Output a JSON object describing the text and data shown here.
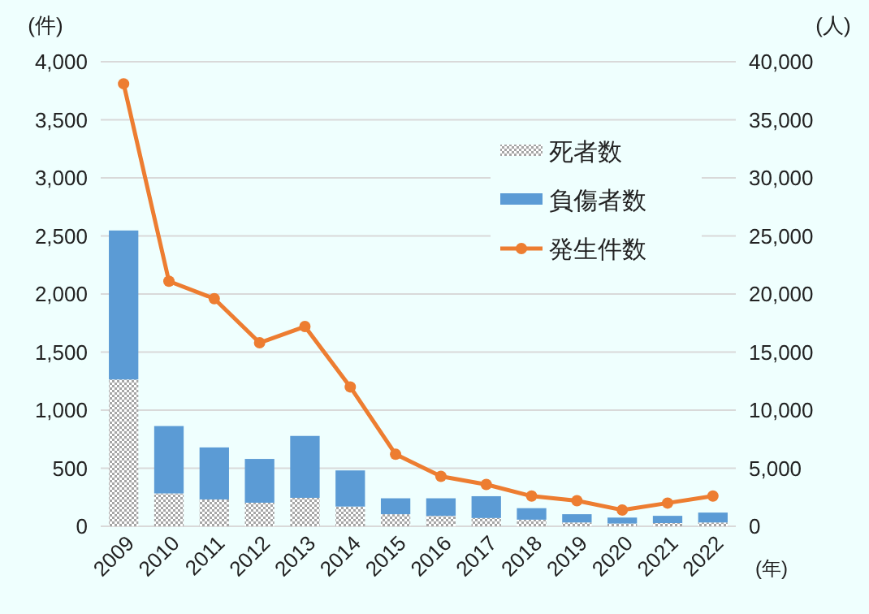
{
  "chart_data": {
    "type": "bar",
    "stacked": true,
    "ylabel": "(件)",
    "y2label": "(人)",
    "xlabel": "(年)",
    "categories": [
      "2009",
      "2010",
      "2011",
      "2012",
      "2013",
      "2014",
      "2015",
      "2016",
      "2017",
      "2018",
      "2019",
      "2020",
      "2021",
      "2022"
    ],
    "series": [
      {
        "name": "死者数",
        "color": "#a6a6a6",
        "axis": "y2",
        "values": [
          12640,
          2830,
          2310,
          2030,
          2450,
          1700,
          1040,
          900,
          710,
          570,
          330,
          240,
          280,
          330
        ]
      },
      {
        "name": "負傷者数",
        "color": "#5b9bd5",
        "axis": "y2",
        "values": [
          12830,
          5800,
          4480,
          3770,
          5330,
          3110,
          1370,
          1510,
          1880,
          990,
          710,
          510,
          620,
          850
        ]
      },
      {
        "name": "発生件数",
        "type": "line",
        "color": "#ed7d31",
        "axis": "y",
        "marker": "circle",
        "values": [
          3810,
          2110,
          1960,
          1580,
          1720,
          1200,
          620,
          430,
          360,
          260,
          220,
          140,
          200,
          260
        ]
      }
    ],
    "ylim": [
      0,
      4000
    ],
    "yticks": [
      {
        "value": 0,
        "label": "0"
      },
      {
        "value": 500,
        "label": "500"
      },
      {
        "value": 1000,
        "label": "1,000"
      },
      {
        "value": 1500,
        "label": "1,500"
      },
      {
        "value": 2000,
        "label": "2,000"
      },
      {
        "value": 2500,
        "label": "2,500"
      },
      {
        "value": 3000,
        "label": "3,000"
      },
      {
        "value": 3500,
        "label": "3,500"
      },
      {
        "value": 4000,
        "label": "4,000"
      }
    ],
    "y2lim": [
      0,
      40000
    ],
    "y2ticks": [
      {
        "value": 0,
        "label": "0"
      },
      {
        "value": 5000,
        "label": "5,000"
      },
      {
        "value": 10000,
        "label": "10,000"
      },
      {
        "value": 15000,
        "label": "15,000"
      },
      {
        "value": 20000,
        "label": "20,000"
      },
      {
        "value": 25000,
        "label": "25,000"
      },
      {
        "value": 30000,
        "label": "30,000"
      },
      {
        "value": 35000,
        "label": "35,000"
      },
      {
        "value": 40000,
        "label": "40,000"
      }
    ],
    "grid": "y",
    "legend": "right"
  }
}
